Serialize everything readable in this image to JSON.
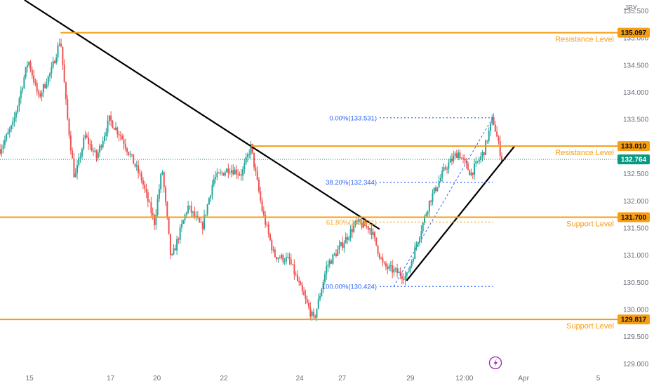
{
  "chart_data": {
    "type": "candlestick",
    "currency": "JPY",
    "y_range": [
      128.85,
      135.7
    ],
    "y_ticks": [
      "135.500",
      "135.000",
      "134.500",
      "134.000",
      "133.500",
      "133.000",
      "132.500",
      "132.000",
      "131.500",
      "131.000",
      "130.500",
      "130.000",
      "129.500",
      "129.000"
    ],
    "x_range": [
      0,
      48
    ],
    "x_ticks": [
      {
        "label": "15",
        "t": 2.3
      },
      {
        "label": "17",
        "t": 8.6
      },
      {
        "label": "20",
        "t": 12.2
      },
      {
        "label": "22",
        "t": 17.4
      },
      {
        "label": "24",
        "t": 23.3
      },
      {
        "label": "27",
        "t": 26.6
      },
      {
        "label": "29",
        "t": 31.9
      },
      {
        "label": "12:00",
        "t": 36.1
      },
      {
        "label": "Apr",
        "t": 40.7
      },
      {
        "label": "5",
        "t": 46.5
      }
    ],
    "price_path": [
      [
        0,
        132.95
      ],
      [
        1,
        133.4
      ],
      [
        2.2,
        134.6
      ],
      [
        3,
        133.9
      ],
      [
        4,
        134.4
      ],
      [
        4.7,
        135.0
      ],
      [
        5.2,
        133.6
      ],
      [
        5.8,
        132.4
      ],
      [
        6.6,
        133.2
      ],
      [
        7.5,
        132.8
      ],
      [
        8.5,
        133.5
      ],
      [
        9.4,
        133.2
      ],
      [
        10.2,
        132.8
      ],
      [
        11,
        132.4
      ],
      [
        12,
        131.6
      ],
      [
        12.6,
        132.6
      ],
      [
        13.3,
        130.9
      ],
      [
        14.6,
        131.9
      ],
      [
        15.7,
        131.5
      ],
      [
        16.6,
        132.4
      ],
      [
        17.8,
        132.6
      ],
      [
        18.8,
        132.5
      ],
      [
        19.5,
        133.0
      ],
      [
        20.4,
        131.8
      ],
      [
        21.3,
        131.0
      ],
      [
        22.5,
        130.9
      ],
      [
        23.5,
        130.3
      ],
      [
        24.4,
        129.8
      ],
      [
        25.4,
        130.8
      ],
      [
        26.6,
        131.2
      ],
      [
        27.7,
        131.6
      ],
      [
        28.8,
        131.5
      ],
      [
        29.8,
        130.8
      ],
      [
        30.7,
        130.7
      ],
      [
        31.6,
        130.6
      ],
      [
        32.5,
        131.3
      ],
      [
        33.4,
        132.0
      ],
      [
        34.6,
        132.6
      ],
      [
        35.6,
        132.9
      ],
      [
        36.6,
        132.5
      ],
      [
        37.6,
        132.9
      ],
      [
        38.3,
        133.53
      ],
      [
        39,
        132.764
      ]
    ],
    "last_price": "132.764",
    "levels": [
      {
        "label": "Resistance Level",
        "value": 135.097,
        "tag": "135.097",
        "start_t": 4.7
      },
      {
        "label": "Resistance Level",
        "value": 133.01,
        "tag": "133.010",
        "start_t": 19.5
      },
      {
        "label": "Support Level",
        "value": 131.7,
        "tag": "131.700",
        "start_t": 0
      },
      {
        "label": "Support Level",
        "value": 129.817,
        "tag": "129.817",
        "start_t": 0
      }
    ],
    "trendlines": [
      {
        "name": "downtrend",
        "points": [
          [
            1.9,
            135.7
          ],
          [
            29.5,
            131.48
          ]
        ]
      },
      {
        "name": "uptrend",
        "points": [
          [
            31.6,
            130.53
          ],
          [
            40,
            133.01
          ]
        ]
      }
    ],
    "fibonacci": {
      "from_t": 30.6,
      "to_t": 38.3,
      "line_end_t": 38.3,
      "levels": [
        {
          "label": "0.00%(133.531)",
          "value": 133.531
        },
        {
          "label": "38.20%(132.344)",
          "value": 132.344
        },
        {
          "label": "61.80%(131.611)",
          "value": 131.611
        },
        {
          "label": "100.00%(130.424)",
          "value": 130.424
        }
      ]
    },
    "colors": {
      "up": "#26a69a",
      "down": "#ef5350",
      "level": "#f59d14",
      "fib": "#2962ff",
      "fib_618": "#f5a623",
      "last_price": "#089981",
      "trendline": "#000000"
    }
  },
  "badge_icon": "lightning-icon"
}
